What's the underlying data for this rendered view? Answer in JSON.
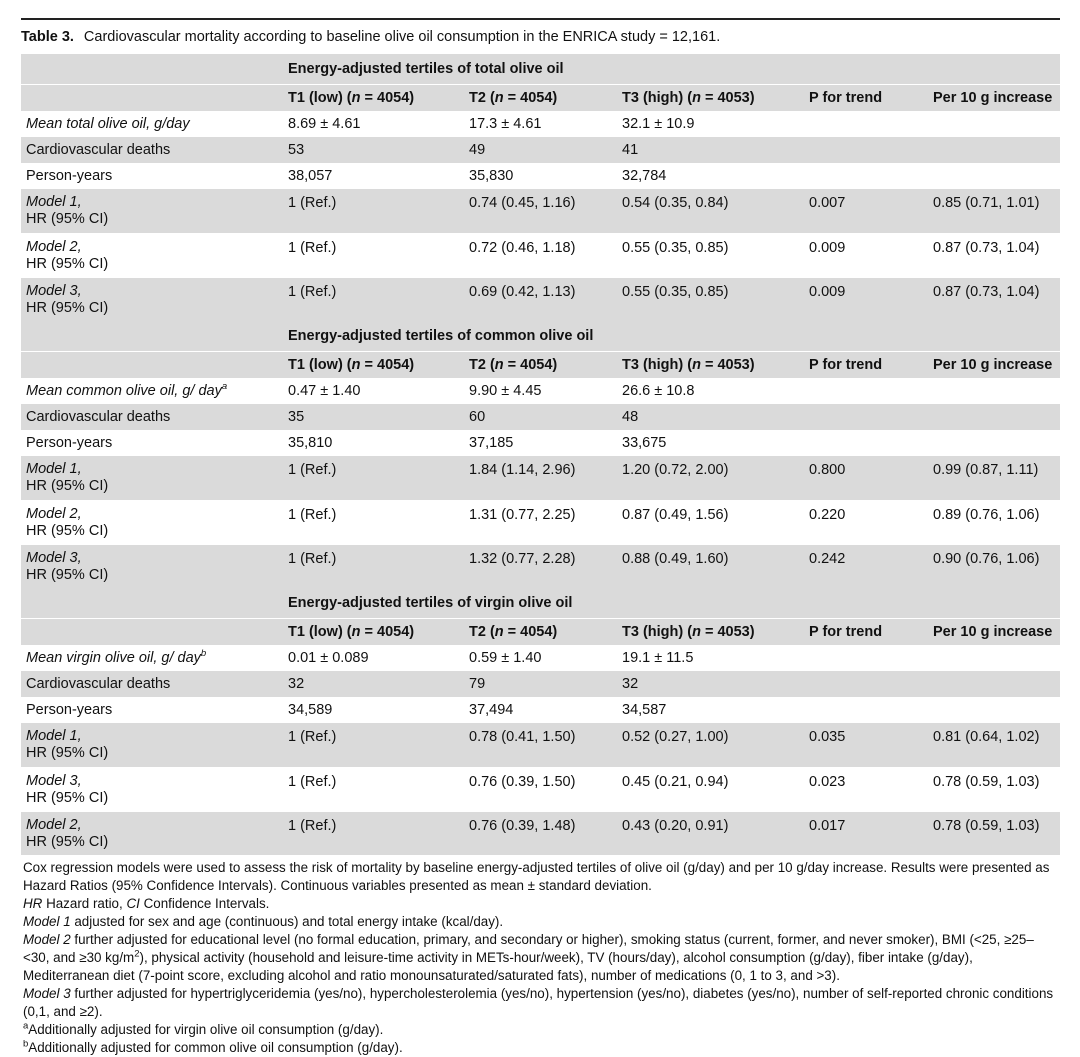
{
  "table": {
    "label": "Table 3.",
    "caption": "Cardiovascular mortality according to baseline olive oil consumption in the ENRICA study = 12,161."
  },
  "columns": [
    "T1 (low) (",
    "T2 (",
    "T3 (high) (",
    "P for trend",
    "Per 10 g increase"
  ],
  "n_values": {
    "t1": "n",
    "t2": "n",
    "t3": "n",
    "eq1": " = 4054)",
    "eq2": " = 4054)",
    "eq3": " = 4053)"
  },
  "sections": [
    {
      "title": "Energy-adjusted tertiles of total olive oil",
      "mean_label": "Mean total olive oil, g/day",
      "mean_sup": "",
      "mean": [
        "8.69 ± 4.61",
        "17.3 ± 4.61",
        "32.1 ± 10.9",
        "",
        ""
      ],
      "deaths_label": "Cardiovascular deaths",
      "deaths": [
        "53",
        "49",
        "41",
        "",
        ""
      ],
      "py_label": "Person-years",
      "py": [
        "38,057",
        "35,830",
        "32,784",
        "",
        ""
      ],
      "models": [
        {
          "name": "Model 1,",
          "sub": "HR (95% CI)",
          "vals": [
            "1 (Ref.)",
            "0.74 (0.45, 1.16)",
            "0.54 (0.35, 0.84)",
            "0.007",
            "0.85 (0.71, 1.01)"
          ]
        },
        {
          "name": "Model 2,",
          "sub": "HR (95% CI)",
          "vals": [
            "1 (Ref.)",
            "0.72 (0.46, 1.18)",
            "0.55 (0.35, 0.85)",
            "0.009",
            "0.87 (0.73, 1.04)"
          ]
        },
        {
          "name": "Model 3,",
          "sub": "HR (95% CI)",
          "vals": [
            "1 (Ref.)",
            "0.69 (0.42, 1.13)",
            "0.55 (0.35, 0.85)",
            "0.009",
            "0.87 (0.73, 1.04)"
          ]
        }
      ]
    },
    {
      "title": "Energy-adjusted tertiles of common olive oil",
      "mean_label": "Mean common olive oil, g/ day",
      "mean_sup": "a",
      "mean": [
        "0.47 ± 1.40",
        "9.90 ± 4.45",
        "26.6 ± 10.8",
        "",
        ""
      ],
      "deaths_label": "Cardiovascular deaths",
      "deaths": [
        "35",
        "60",
        "48",
        "",
        ""
      ],
      "py_label": "Person-years",
      "py": [
        "35,810",
        "37,185",
        "33,675",
        "",
        ""
      ],
      "models": [
        {
          "name": "Model 1,",
          "sub": "HR (95% CI)",
          "vals": [
            "1 (Ref.)",
            "1.84 (1.14, 2.96)",
            "1.20 (0.72, 2.00)",
            "0.800",
            "0.99 (0.87, 1.11)"
          ]
        },
        {
          "name": "Model 2,",
          "sub": "HR (95% CI)",
          "vals": [
            "1 (Ref.)",
            "1.31 (0.77, 2.25)",
            "0.87 (0.49, 1.56)",
            "0.220",
            "0.89 (0.76, 1.06)"
          ]
        },
        {
          "name": "Model 3,",
          "sub": "HR (95% CI)",
          "vals": [
            "1 (Ref.)",
            "1.32 (0.77, 2.28)",
            "0.88 (0.49, 1.60)",
            "0.242",
            "0.90 (0.76, 1.06)"
          ]
        }
      ]
    },
    {
      "title": "Energy-adjusted tertiles of virgin olive oil",
      "mean_label": "Mean virgin olive oil, g/ day",
      "mean_sup": "b",
      "mean": [
        "0.01 ± 0.089",
        "0.59 ± 1.40",
        "19.1 ± 11.5",
        "",
        ""
      ],
      "deaths_label": "Cardiovascular deaths",
      "deaths": [
        "32",
        "79",
        "32",
        "",
        ""
      ],
      "py_label": "Person-years",
      "py": [
        "34,589",
        "37,494",
        "34,587",
        "",
        ""
      ],
      "models": [
        {
          "name": "Model 1,",
          "sub": "HR (95% CI)",
          "vals": [
            "1 (Ref.)",
            "0.78 (0.41, 1.50)",
            "0.52 (0.27, 1.00)",
            "0.035",
            "0.81 (0.64, 1.02)"
          ]
        },
        {
          "name": "Model 3,",
          "sub": "HR (95% CI)",
          "vals": [
            "1 (Ref.)",
            "0.76 (0.39, 1.50)",
            "0.45 (0.21, 0.94)",
            "0.023",
            "0.78 (0.59, 1.03)"
          ]
        },
        {
          "name": "Model 2,",
          "sub": "HR (95% CI)",
          "vals": [
            "1 (Ref.)",
            "0.76 (0.39, 1.48)",
            "0.43 (0.20, 0.91)",
            "0.017",
            "0.78 (0.59, 1.03)"
          ]
        }
      ]
    }
  ],
  "notes": {
    "cox": "Cox regression models were used to assess the risk of mortality by baseline energy-adjusted tertiles of olive oil (g/day) and per 10 g/day increase. Results were presented as Hazard Ratios (95% Confidence Intervals). Continuous variables presented as mean ± standard deviation.",
    "abbr_hr": "HR",
    "abbr_hr_text": " Hazard ratio, ",
    "abbr_ci": "CI",
    "abbr_ci_text": " Confidence Intervals.",
    "m1_name": "Model 1",
    "m1_text": " adjusted for sex and age (continuous) and total energy intake (kcal/day).",
    "m2_name": "Model 2",
    "m2_text_a": " further adjusted for educational level (no formal education, primary, and secondary or higher), smoking status (current, former, and never smoker), BMI (<25, ≥25–<30, and ≥30 kg/m",
    "m2_sup": "2",
    "m2_text_b": "), physical activity (household and leisure-time activity in METs-hour/week), TV (hours/day), alcohol consumption (g/day), fiber intake (g/day), Mediterranean diet (7-point score, excluding alcohol and ratio monounsaturated/saturated fats), number of medications (0, 1 to 3, and >3).",
    "m3_name": "Model 3",
    "m3_text": " further adjusted for hypertriglyceridemia (yes/no), hypercholesterolemia (yes/no), hypertension (yes/no), diabetes (yes/no), number of self-reported chronic conditions (0,1, and ≥2).",
    "fa_sup": "a",
    "fa_text": "Additionally adjusted for virgin olive oil consumption (g/day).",
    "fb_sup": "b",
    "fb_text": "Additionally adjusted for common olive oil consumption (g/day)."
  }
}
